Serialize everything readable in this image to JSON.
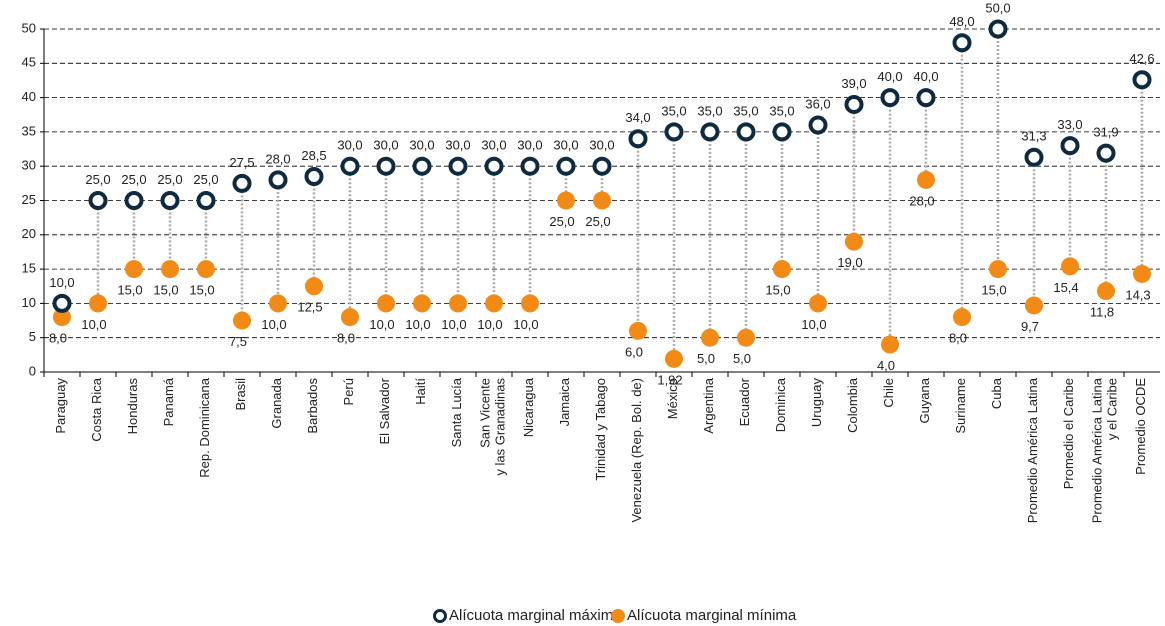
{
  "chart_data": {
    "type": "dumbbell",
    "categories": [
      "Paraguay",
      "Costa Rica",
      "Honduras",
      "Panamá",
      "Rep. Dominicana",
      "Brasil",
      "Granada",
      "Barbados",
      "Perú",
      "El Salvador",
      "Haití",
      "Santa Lucía",
      "San Vicente\ny las Granadinas",
      "Nicaragua",
      "Jamaica",
      "Trinidad y Tabago",
      "Venezuela (Rep. Bol. de)",
      "México",
      "Argentina",
      "Ecuador",
      "Dominica",
      "Uruguay",
      "Colombia",
      "Chile",
      "Guyana",
      "Suriname",
      "Cuba",
      "Promedio América Latina",
      "Promedio el Caribe",
      "Promedio América Latina\ny el Caribe",
      "Promedio OCDE"
    ],
    "series": [
      {
        "name": "Alícuota marginal máxima",
        "color": "#0d2a3f",
        "values": [
          10,
          25,
          25,
          25,
          25,
          27.5,
          28,
          28.5,
          30,
          30,
          30,
          30,
          30,
          30,
          30,
          30,
          34,
          35,
          35,
          35,
          35,
          36,
          39,
          40,
          40,
          48,
          50,
          31.3,
          33,
          31.9,
          42.6
        ],
        "value_labels": [
          "10,0",
          "25,0",
          "25,0",
          "25,0",
          "25,0",
          "27,5",
          "28,0",
          "28,5",
          "30,0",
          "30,0",
          "30,0",
          "30,0",
          "30,0",
          "30,0",
          "30,0",
          "30,0",
          "34,0",
          "35,0",
          "35,0",
          "35,0",
          "35,0",
          "36,0",
          "39,0",
          "40,0",
          "40,0",
          "48,0",
          "50,0",
          "31,3",
          "33,0",
          "31,9",
          "42,6"
        ]
      },
      {
        "name": "Alícuota marginal mínima",
        "color": "#f28a16",
        "values": [
          8,
          10,
          15,
          15,
          15,
          7.5,
          10,
          12.5,
          8,
          10,
          10,
          10,
          10,
          10,
          25,
          25,
          6,
          1.92,
          5,
          5,
          15,
          10,
          19,
          4,
          28,
          8,
          15,
          9.7,
          15.4,
          11.8,
          14.3
        ],
        "value_labels": [
          "8,0",
          "10,0",
          "15,0",
          "15,0",
          "15,0",
          "7,5",
          "10,0",
          "12,5",
          "8,0",
          "10,0",
          "10,0",
          "10,0",
          "10,0",
          "10,0",
          "25,0",
          "25,0",
          "6,0",
          "1,92",
          "5,0",
          "5,0",
          "15,0",
          "10,0",
          "19,0",
          "4,0",
          "28,0",
          "8,0",
          "15,0",
          "9,7",
          "15,4",
          "11,8",
          "14,3"
        ]
      }
    ],
    "ylim": [
      0,
      50
    ],
    "yticks": [
      0,
      5,
      10,
      15,
      20,
      25,
      30,
      35,
      40,
      45,
      50
    ],
    "grid": true,
    "legend": "bottom"
  }
}
